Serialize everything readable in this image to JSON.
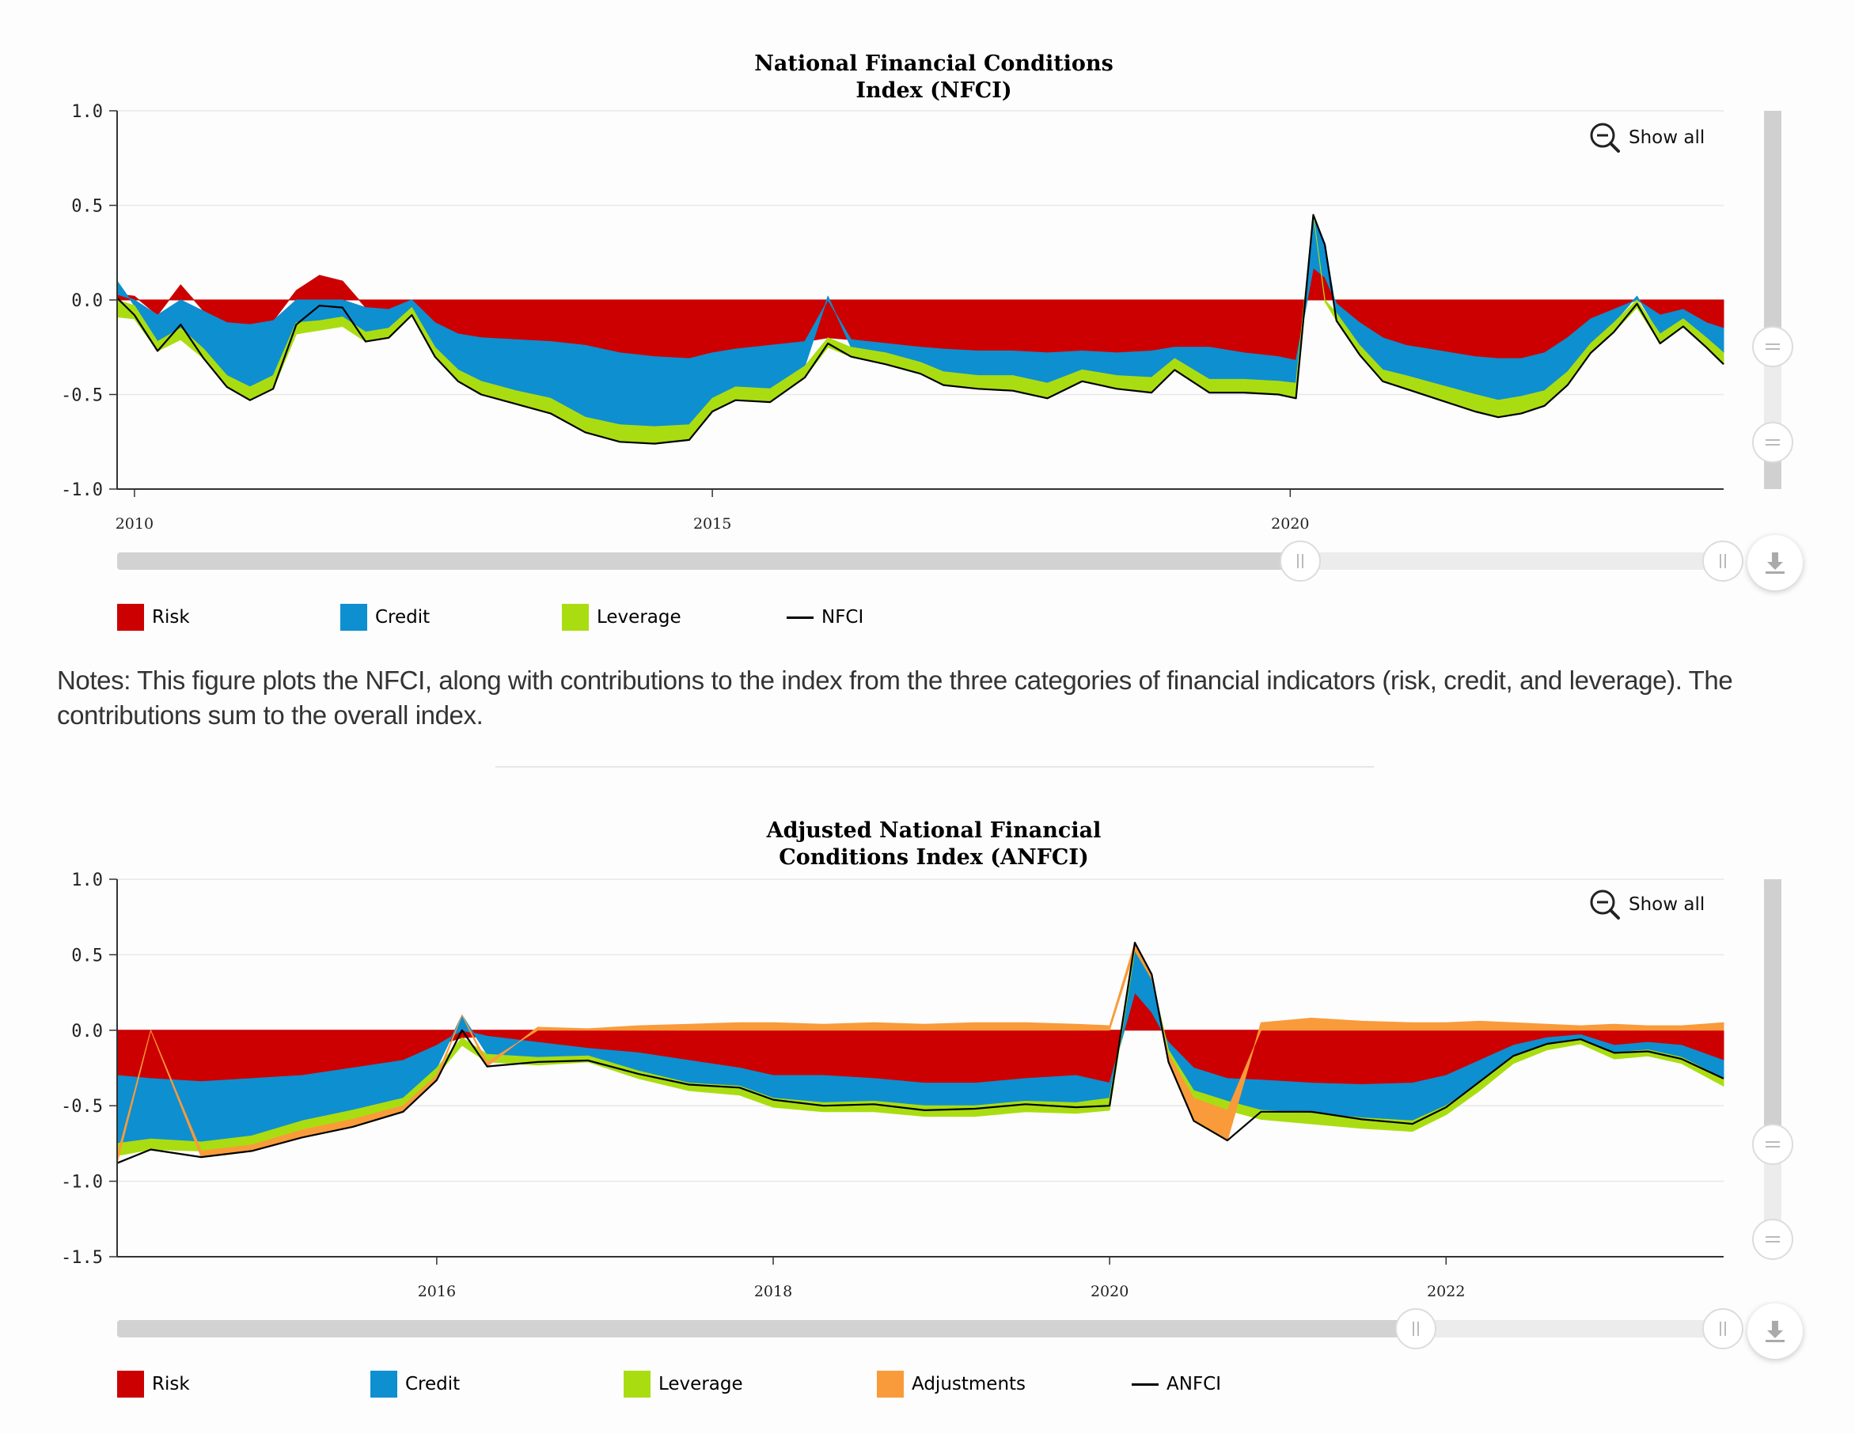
{
  "nfci": {
    "title_line1": "National Financial Conditions",
    "title_line2": "Index (NFCI)",
    "show_all_label": "Show all",
    "legend": [
      {
        "label": "Risk",
        "color": "#cc0000",
        "kind": "swatch"
      },
      {
        "label": "Credit",
        "color": "#0e8fd0",
        "kind": "swatch"
      },
      {
        "label": "Leverage",
        "color": "#aadd11",
        "kind": "swatch"
      },
      {
        "label": "NFCI",
        "color": "#000000",
        "kind": "line"
      }
    ],
    "chart_data": {
      "type": "area",
      "title": "National Financial Conditions Index (NFCI)",
      "x_range": [
        2009.85,
        2023.75
      ],
      "ylim": [
        -1.0,
        1.0
      ],
      "y_ticks": [
        "1.0",
        "0.5",
        "0.0",
        "-0.5",
        "-1.0"
      ],
      "x_ticks": [
        {
          "value": 2010,
          "label": "2010"
        },
        {
          "value": 2015,
          "label": "2015"
        },
        {
          "value": 2020,
          "label": "2020"
        }
      ],
      "grid": true,
      "x": [
        2009.85,
        2010.0,
        2010.2,
        2010.4,
        2010.6,
        2010.8,
        2011.0,
        2011.2,
        2011.4,
        2011.6,
        2011.8,
        2012.0,
        2012.2,
        2012.4,
        2012.6,
        2012.8,
        2013.0,
        2013.3,
        2013.6,
        2013.9,
        2014.2,
        2014.5,
        2014.8,
        2015.0,
        2015.2,
        2015.5,
        2015.8,
        2016.0,
        2016.2,
        2016.5,
        2016.8,
        2017.0,
        2017.3,
        2017.6,
        2017.9,
        2018.2,
        2018.5,
        2018.8,
        2019.0,
        2019.3,
        2019.6,
        2019.9,
        2020.05,
        2020.2,
        2020.3,
        2020.4,
        2020.6,
        2020.8,
        2021.0,
        2021.3,
        2021.6,
        2021.8,
        2022.0,
        2022.2,
        2022.4,
        2022.6,
        2022.8,
        2023.0,
        2023.2,
        2023.4,
        2023.6,
        2023.75
      ],
      "series": [
        {
          "name": "Risk",
          "color": "#cc0000",
          "values": [
            0.03,
            0.02,
            -0.08,
            0.08,
            -0.06,
            -0.12,
            -0.13,
            -0.11,
            0.05,
            0.13,
            0.1,
            -0.04,
            -0.05,
            0.0,
            -0.12,
            -0.18,
            -0.2,
            -0.21,
            -0.22,
            -0.24,
            -0.28,
            -0.3,
            -0.31,
            -0.28,
            -0.26,
            -0.24,
            -0.22,
            -0.2,
            -0.21,
            -0.23,
            -0.25,
            -0.26,
            -0.27,
            -0.27,
            -0.28,
            -0.27,
            -0.28,
            -0.27,
            -0.25,
            -0.25,
            -0.28,
            -0.3,
            -0.32,
            0.17,
            0.12,
            -0.02,
            -0.12,
            -0.2,
            -0.24,
            -0.27,
            -0.3,
            -0.31,
            -0.31,
            -0.28,
            -0.2,
            -0.1,
            -0.05,
            0.0,
            -0.08,
            -0.05,
            -0.12,
            -0.15
          ]
        },
        {
          "name": "Credit",
          "color": "#0e8fd0",
          "values": [
            0.07,
            -0.03,
            -0.14,
            -0.15,
            -0.2,
            -0.28,
            -0.33,
            -0.29,
            -0.12,
            -0.11,
            -0.09,
            -0.13,
            -0.1,
            -0.04,
            -0.13,
            -0.19,
            -0.23,
            -0.27,
            -0.3,
            -0.38,
            -0.38,
            -0.37,
            -0.35,
            -0.24,
            -0.2,
            -0.23,
            -0.13,
            0.02,
            -0.04,
            -0.05,
            -0.08,
            -0.12,
            -0.13,
            -0.13,
            -0.16,
            -0.1,
            -0.12,
            -0.14,
            -0.06,
            -0.17,
            -0.14,
            -0.13,
            -0.12,
            0.28,
            0.18,
            -0.05,
            -0.12,
            -0.17,
            -0.16,
            -0.18,
            -0.2,
            -0.22,
            -0.2,
            -0.2,
            -0.18,
            -0.13,
            -0.07,
            0.02,
            -0.1,
            -0.05,
            -0.08,
            -0.13
          ]
        },
        {
          "name": "Leverage",
          "color": "#aadd11",
          "values": [
            -0.09,
            -0.07,
            -0.05,
            -0.06,
            -0.05,
            -0.06,
            -0.07,
            -0.07,
            -0.06,
            -0.05,
            -0.05,
            -0.05,
            -0.05,
            -0.04,
            -0.05,
            -0.06,
            -0.07,
            -0.07,
            -0.08,
            -0.08,
            -0.09,
            -0.09,
            -0.08,
            -0.07,
            -0.07,
            -0.07,
            -0.06,
            -0.05,
            -0.05,
            -0.06,
            -0.06,
            -0.07,
            -0.07,
            -0.08,
            -0.08,
            -0.06,
            -0.07,
            -0.08,
            -0.06,
            -0.07,
            -0.07,
            -0.07,
            -0.08,
            0.0,
            -0.01,
            -0.04,
            -0.05,
            -0.06,
            -0.07,
            -0.08,
            -0.09,
            -0.09,
            -0.09,
            -0.08,
            -0.07,
            -0.05,
            -0.05,
            -0.04,
            -0.05,
            -0.04,
            -0.05,
            -0.06
          ]
        },
        {
          "name": "NFCI",
          "color": "#000000",
          "kind": "line",
          "values": [
            0.01,
            -0.08,
            -0.27,
            -0.13,
            -0.31,
            -0.46,
            -0.53,
            -0.47,
            -0.13,
            -0.03,
            -0.04,
            -0.22,
            -0.2,
            -0.08,
            -0.3,
            -0.43,
            -0.5,
            -0.55,
            -0.6,
            -0.7,
            -0.75,
            -0.76,
            -0.74,
            -0.59,
            -0.53,
            -0.54,
            -0.41,
            -0.23,
            -0.3,
            -0.34,
            -0.39,
            -0.45,
            -0.47,
            -0.48,
            -0.52,
            -0.43,
            -0.47,
            -0.49,
            -0.37,
            -0.49,
            -0.49,
            -0.5,
            -0.52,
            0.45,
            0.29,
            -0.11,
            -0.29,
            -0.43,
            -0.47,
            -0.53,
            -0.59,
            -0.62,
            -0.6,
            -0.56,
            -0.45,
            -0.28,
            -0.17,
            -0.02,
            -0.23,
            -0.14,
            -0.25,
            -0.34
          ]
        }
      ]
    }
  },
  "notes": "Notes: This figure plots the NFCI, along with contributions to the index from the three categories of financial indicators (risk, credit, and leverage). The contributions sum to the overall index.",
  "anfci": {
    "title_line1": "Adjusted National Financial",
    "title_line2": "Conditions Index (ANFCI)",
    "show_all_label": "Show all",
    "legend": [
      {
        "label": "Risk",
        "color": "#cc0000",
        "kind": "swatch"
      },
      {
        "label": "Credit",
        "color": "#0e8fd0",
        "kind": "swatch"
      },
      {
        "label": "Leverage",
        "color": "#aadd11",
        "kind": "swatch"
      },
      {
        "label": "Adjustments",
        "color": "#f99b3a",
        "kind": "swatch"
      },
      {
        "label": "ANFCI",
        "color": "#000000",
        "kind": "line"
      }
    ],
    "chart_data": {
      "type": "area",
      "title": "Adjusted National Financial Conditions Index (ANFCI)",
      "x_range": [
        2014.1,
        2023.65
      ],
      "ylim": [
        -1.5,
        1.0
      ],
      "y_ticks": [
        "1.0",
        "0.5",
        "0.0",
        "-0.5",
        "-1.0",
        "-1.5"
      ],
      "x_ticks": [
        {
          "value": 2016,
          "label": "2016"
        },
        {
          "value": 2018,
          "label": "2018"
        },
        {
          "value": 2020,
          "label": "2020"
        },
        {
          "value": 2022,
          "label": "2022"
        }
      ],
      "grid": true,
      "x": [
        2014.1,
        2014.3,
        2014.6,
        2014.9,
        2015.2,
        2015.5,
        2015.8,
        2016.0,
        2016.15,
        2016.3,
        2016.6,
        2016.9,
        2017.2,
        2017.5,
        2017.8,
        2018.0,
        2018.3,
        2018.6,
        2018.9,
        2019.2,
        2019.5,
        2019.8,
        2020.0,
        2020.15,
        2020.25,
        2020.35,
        2020.5,
        2020.7,
        2020.9,
        2021.2,
        2021.5,
        2021.8,
        2022.0,
        2022.2,
        2022.4,
        2022.6,
        2022.8,
        2023.0,
        2023.2,
        2023.4,
        2023.65
      ],
      "series": [
        {
          "name": "Risk",
          "color": "#cc0000",
          "values": [
            -0.3,
            -0.32,
            -0.34,
            -0.32,
            -0.3,
            -0.25,
            -0.2,
            -0.1,
            -0.05,
            -0.04,
            -0.08,
            -0.12,
            -0.15,
            -0.2,
            -0.25,
            -0.3,
            -0.3,
            -0.32,
            -0.35,
            -0.35,
            -0.32,
            -0.3,
            -0.35,
            0.25,
            0.12,
            -0.08,
            -0.25,
            -0.32,
            -0.33,
            -0.35,
            -0.36,
            -0.35,
            -0.3,
            -0.2,
            -0.1,
            -0.05,
            -0.03,
            -0.1,
            -0.08,
            -0.1,
            -0.2
          ]
        },
        {
          "name": "Credit",
          "color": "#0e8fd0",
          "values": [
            -0.45,
            -0.4,
            -0.4,
            -0.38,
            -0.3,
            -0.28,
            -0.25,
            -0.15,
            0.1,
            -0.12,
            -0.1,
            -0.05,
            -0.12,
            -0.15,
            -0.12,
            -0.15,
            -0.18,
            -0.15,
            -0.15,
            -0.15,
            -0.15,
            -0.18,
            -0.1,
            0.28,
            0.22,
            -0.05,
            -0.15,
            -0.15,
            -0.2,
            -0.2,
            -0.22,
            -0.25,
            -0.2,
            -0.15,
            -0.08,
            -0.05,
            -0.03,
            -0.05,
            -0.05,
            -0.08,
            -0.12
          ]
        },
        {
          "name": "Leverage",
          "color": "#aadd11",
          "values": [
            -0.08,
            -0.07,
            -0.06,
            -0.06,
            -0.06,
            -0.06,
            -0.05,
            -0.05,
            -0.05,
            -0.05,
            -0.05,
            -0.04,
            -0.05,
            -0.05,
            -0.06,
            -0.06,
            -0.06,
            -0.07,
            -0.07,
            -0.07,
            -0.07,
            -0.07,
            -0.08,
            0.0,
            0.0,
            -0.03,
            -0.05,
            -0.06,
            -0.06,
            -0.07,
            -0.07,
            -0.07,
            -0.06,
            -0.05,
            -0.04,
            -0.03,
            -0.03,
            -0.04,
            -0.04,
            -0.04,
            -0.05
          ]
        },
        {
          "name": "Adjustments",
          "color": "#f99b3a",
          "values": [
            -0.05,
            0.0,
            -0.04,
            -0.04,
            -0.05,
            -0.05,
            -0.04,
            -0.03,
            0.0,
            -0.03,
            0.02,
            0.01,
            0.03,
            0.04,
            0.05,
            0.05,
            0.04,
            0.05,
            0.04,
            0.05,
            0.05,
            0.04,
            0.03,
            0.05,
            0.03,
            -0.05,
            -0.15,
            -0.2,
            0.05,
            0.08,
            0.06,
            0.05,
            0.05,
            0.06,
            0.05,
            0.04,
            0.03,
            0.04,
            0.03,
            0.03,
            0.05
          ]
        },
        {
          "name": "ANFCI",
          "color": "#000000",
          "kind": "line",
          "values": [
            -0.88,
            -0.79,
            -0.84,
            -0.8,
            -0.71,
            -0.64,
            -0.54,
            -0.33,
            0.0,
            -0.24,
            -0.21,
            -0.2,
            -0.29,
            -0.36,
            -0.38,
            -0.46,
            -0.5,
            -0.49,
            -0.53,
            -0.52,
            -0.49,
            -0.51,
            -0.5,
            0.58,
            0.37,
            -0.21,
            -0.6,
            -0.73,
            -0.54,
            -0.54,
            -0.59,
            -0.62,
            -0.51,
            -0.34,
            -0.17,
            -0.09,
            -0.06,
            -0.15,
            -0.14,
            -0.19,
            -0.32
          ]
        }
      ]
    }
  }
}
